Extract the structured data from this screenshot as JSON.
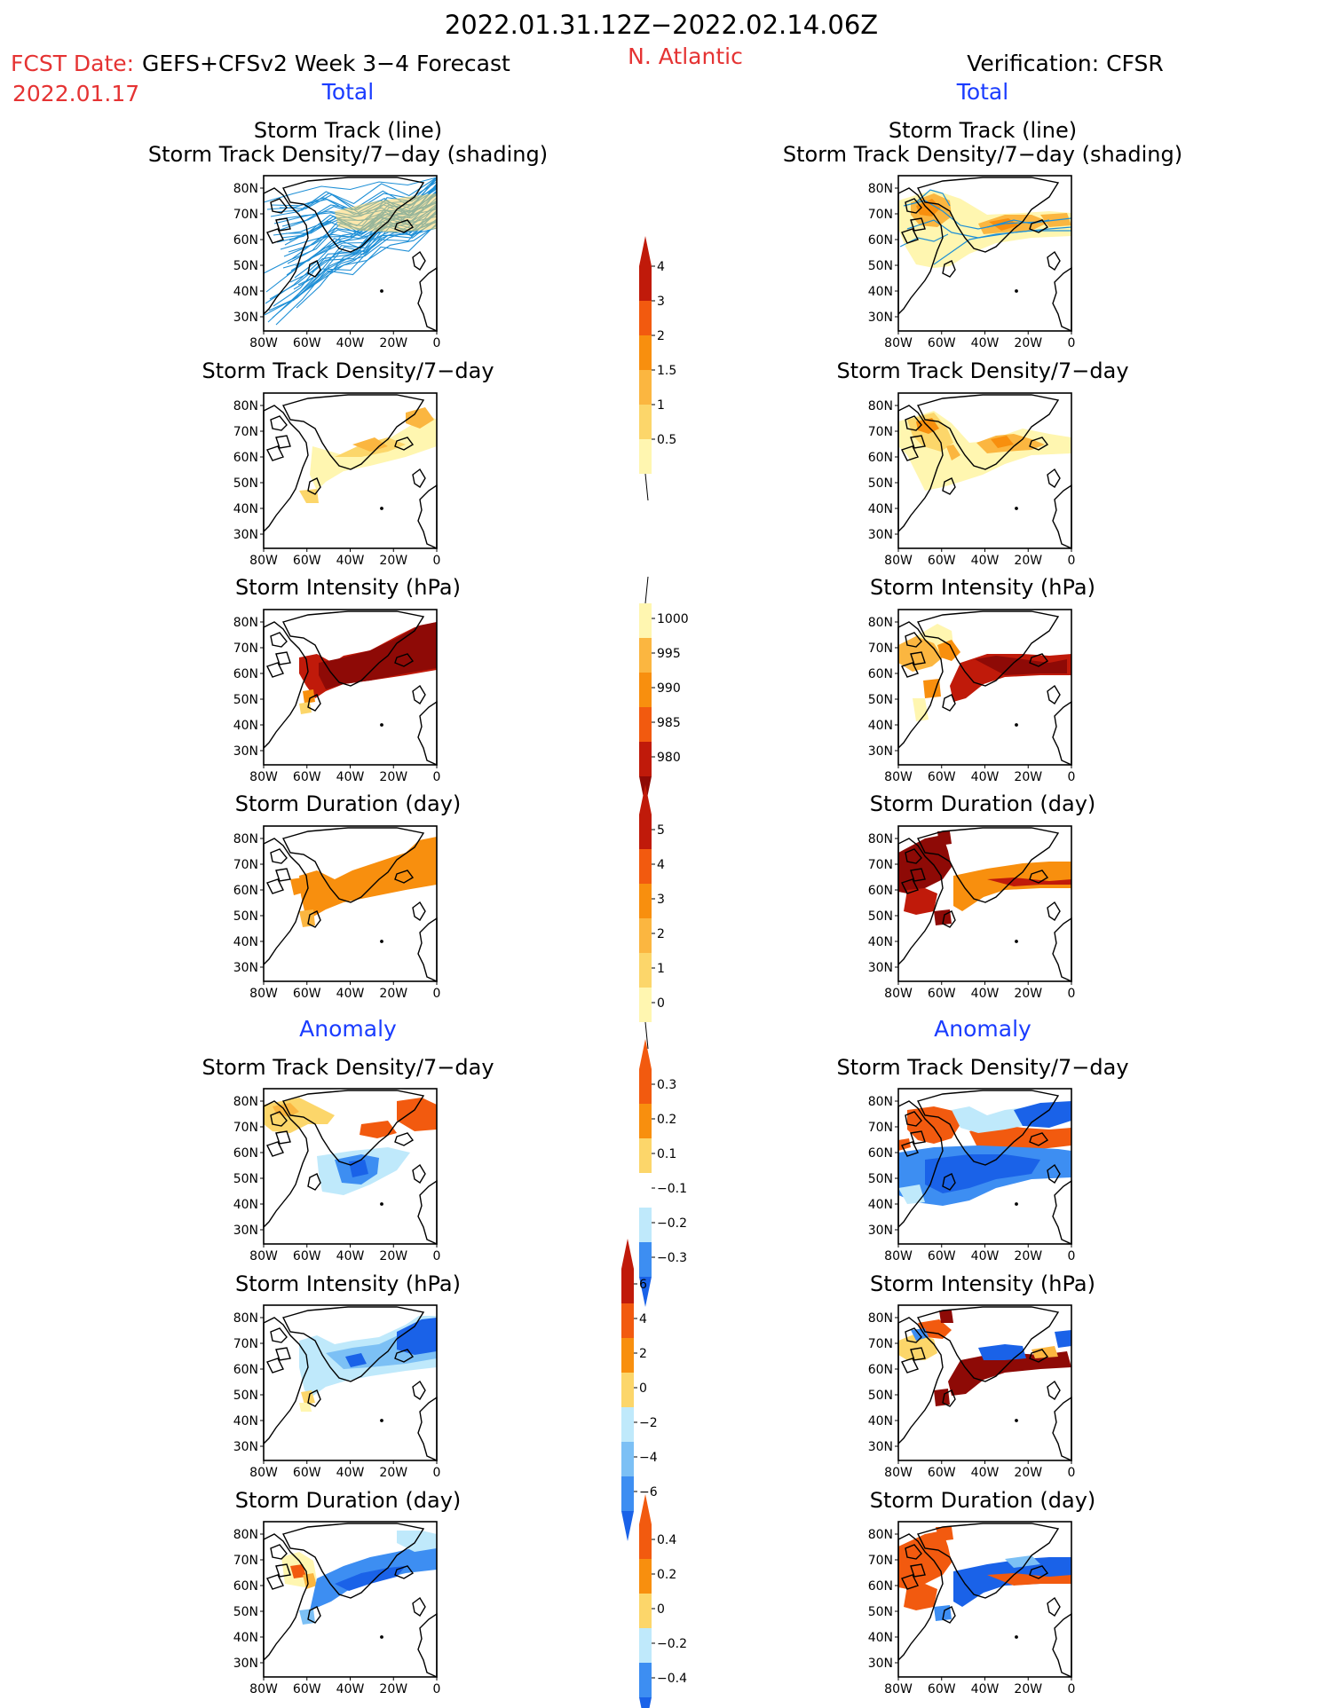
{
  "header": {
    "date_range": "2022.01.31.12Z−2022.02.14.06Z",
    "fcst_label": "FCST Date:",
    "fcst_date": "2022.01.17",
    "model": "GEFS+CFSv2 Week 3−4 Forecast",
    "region": "N. Atlantic",
    "verification": "Verification: CFSR"
  },
  "columns": {
    "left_total": "Total",
    "right_total": "Total",
    "left_anomaly": "Anomaly",
    "right_anomaly": "Anomaly"
  },
  "panel_titles": {
    "track_line": "Storm Track (line)",
    "track_shading": "Storm Track Density/7−day (shading)",
    "density": "Storm Track Density/7−day",
    "intensity": "Storm Intensity (hPa)",
    "duration": "Storm Duration (day)"
  },
  "axes": {
    "lat_ticks": [
      "80N",
      "70N",
      "60N",
      "50N",
      "40N",
      "30N"
    ],
    "lon_ticks": [
      "80W",
      "60W",
      "40W",
      "20W",
      "0"
    ]
  },
  "colorbars": {
    "density_total": [
      "4",
      "3",
      "2",
      "1.5",
      "1",
      "0.5"
    ],
    "intensity_total": [
      "1000",
      "995",
      "990",
      "985",
      "980"
    ],
    "duration_total": [
      "5",
      "4",
      "3",
      "2",
      "1",
      "0"
    ],
    "density_anom": [
      "0.3",
      "0.2",
      "0.1",
      "−0.1",
      "−0.2",
      "−0.3"
    ],
    "intensity_anom": [
      "6",
      "4",
      "2",
      "0",
      "−2",
      "−4",
      "−6"
    ],
    "duration_anom": [
      "0.4",
      "0.2",
      "0",
      "−0.2",
      "−0.4"
    ]
  },
  "colors": {
    "red": "#e53333",
    "blue": "#1a3cff",
    "track_line": "#1e8fd6",
    "yellow_light": "#fff6b0",
    "yellow": "#fcd66a",
    "orange_light": "#fbb640",
    "orange": "#f88f0e",
    "orange_dark": "#f25a0f",
    "red_dark": "#c01a0a",
    "maroon": "#8e0a06",
    "blue_light": "#bfe9fb",
    "blue_mid": "#7cc0f5",
    "blue_med": "#3d8ef2",
    "blue_dark": "#1a62e8"
  }
}
